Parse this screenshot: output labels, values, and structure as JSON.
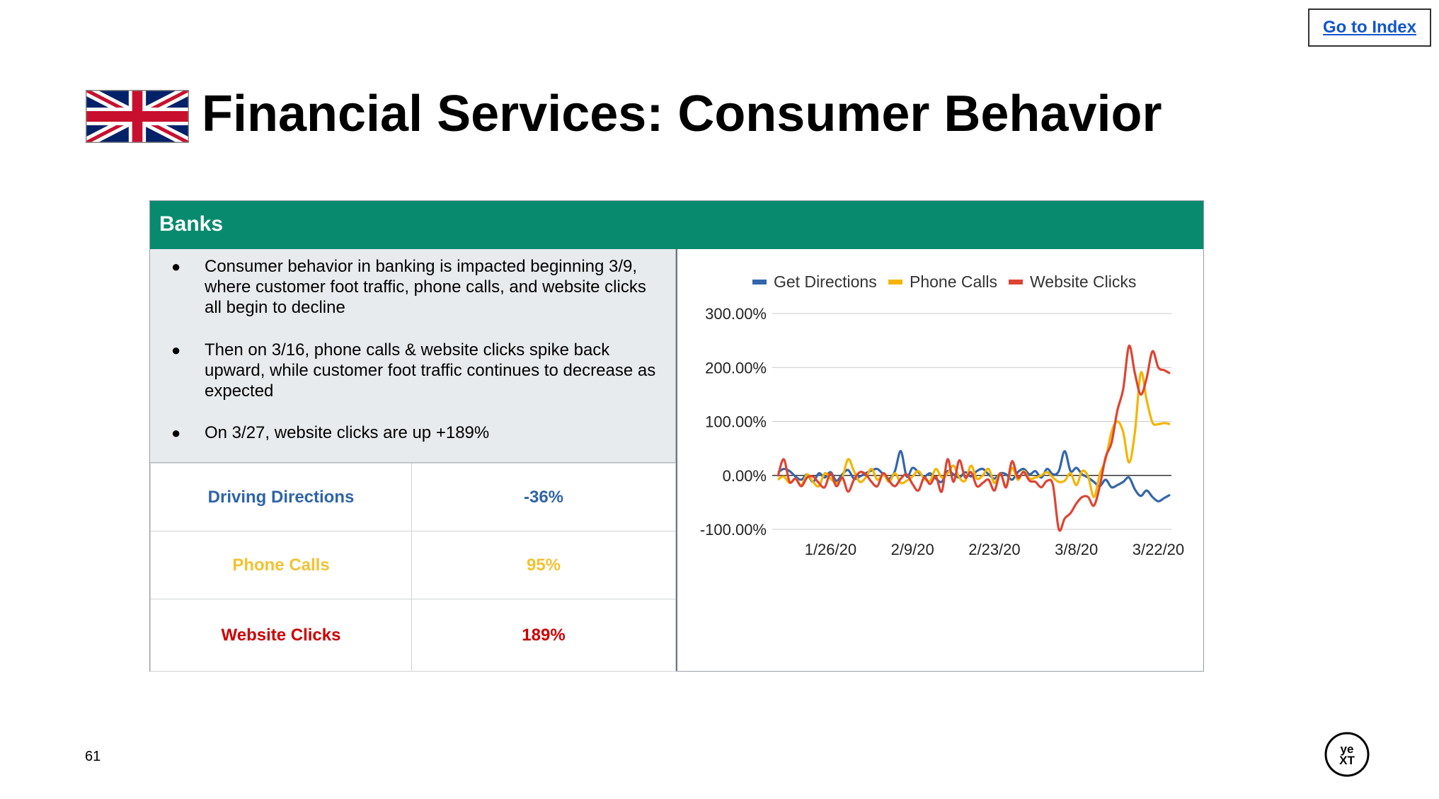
{
  "nav": {
    "go_to_index": "Go to Index"
  },
  "page": {
    "title": "Financial Services: Consumer Behavior",
    "number": "61"
  },
  "panel": {
    "header": "Banks",
    "bullets": [
      "Consumer behavior in banking is impacted beginning 3/9, where customer foot traffic, phone calls, and website clicks all begin to decline",
      "Then on 3/16, phone calls & website clicks spike back upward, while customer foot traffic continues to decrease as expected",
      "On 3/27, website clicks are up +189%"
    ],
    "stats": [
      {
        "label": "Driving Directions",
        "value": "-36%",
        "color": "#2e64a8"
      },
      {
        "label": "Phone Calls",
        "value": "95%",
        "color": "#f1c232"
      },
      {
        "label": "Website Clicks",
        "value": "189%",
        "color": "#cc0000"
      }
    ]
  },
  "chart_data": {
    "type": "line",
    "x_ticks": [
      "1/26/20",
      "2/9/20",
      "2/23/20",
      "3/8/20",
      "3/22/20"
    ],
    "y_ticks": [
      "300.00%",
      "200.00%",
      "100.00%",
      "0.00%",
      "-100.00%"
    ],
    "ylim": [
      -100,
      300
    ],
    "grid": true,
    "legend_position": "top",
    "x_start": "1/17/20",
    "x_end": "3/27/20",
    "series": [
      {
        "name": "Get Directions",
        "color": "#3366aa",
        "values": [
          5,
          12,
          8,
          -2,
          -8,
          2,
          -12,
          4,
          -4,
          6,
          -10,
          2,
          10,
          -6,
          -2,
          4,
          9,
          12,
          2,
          -6,
          8,
          45,
          -2,
          14,
          6,
          -2,
          4,
          -6,
          -12,
          8,
          2,
          -4,
          6,
          -2,
          8,
          12,
          2,
          -6,
          4,
          2,
          -8,
          6,
          12,
          2,
          8,
          -4,
          12,
          2,
          8,
          45,
          8,
          14,
          2,
          -4,
          -12,
          -20,
          -8,
          -22,
          -18,
          -12,
          -4,
          -26,
          -38,
          -28,
          -40,
          -48,
          -42,
          -36
        ]
      },
      {
        "name": "Phone Calls",
        "color": "#f4b400",
        "values": [
          -8,
          -2,
          -14,
          -6,
          -18,
          2,
          -12,
          -20,
          4,
          -6,
          -14,
          -4,
          30,
          8,
          -12,
          -4,
          12,
          -8,
          2,
          -12,
          4,
          -14,
          -10,
          -2,
          8,
          -6,
          -10,
          12,
          -4,
          4,
          18,
          -4,
          -10,
          18,
          -6,
          0,
          12,
          -14,
          4,
          -20,
          14,
          -8,
          8,
          -6,
          -4,
          0,
          6,
          -4,
          -12,
          -10,
          4,
          -18,
          8,
          -2,
          -40,
          2,
          30,
          80,
          100,
          80,
          24,
          80,
          190,
          140,
          98,
          95,
          97,
          95
        ]
      },
      {
        "name": "Website Clicks",
        "color": "#dd4433",
        "values": [
          -2,
          30,
          -12,
          -6,
          -20,
          -4,
          -2,
          -14,
          -22,
          4,
          -20,
          -4,
          -30,
          -8,
          6,
          2,
          -12,
          -20,
          4,
          -10,
          -20,
          -6,
          2,
          -16,
          -28,
          -4,
          -16,
          -2,
          -30,
          30,
          -12,
          28,
          -4,
          6,
          -20,
          -14,
          -8,
          -28,
          4,
          -22,
          26,
          -4,
          6,
          -10,
          -12,
          -22,
          -10,
          -18,
          -100,
          -80,
          -70,
          -52,
          -40,
          -40,
          -56,
          -20,
          34,
          60,
          120,
          160,
          240,
          189,
          150,
          180,
          230,
          200,
          195,
          189
        ]
      }
    ]
  }
}
